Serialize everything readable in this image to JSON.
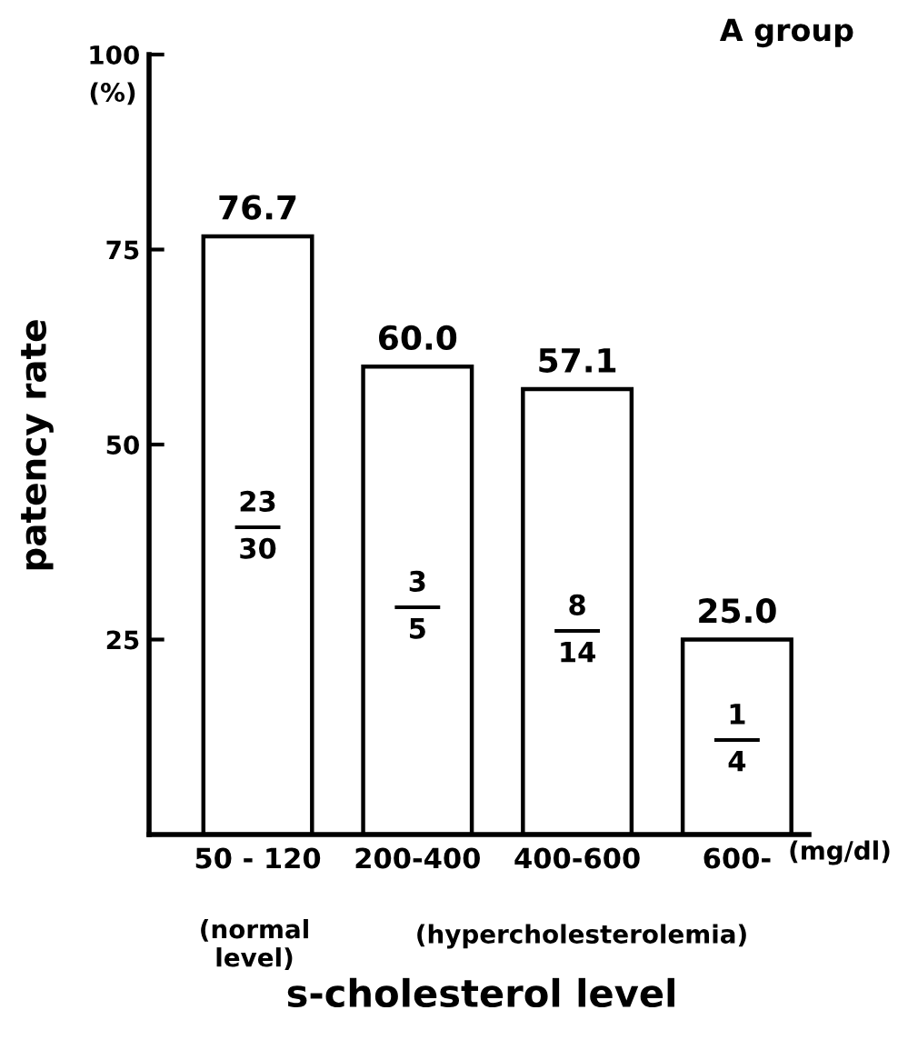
{
  "chart_data": {
    "type": "bar",
    "title": "A group",
    "xlabel": "s-cholesterol level",
    "ylabel": "patency rate",
    "categories": [
      "50 - 120",
      "200-400",
      "400-600",
      "600-"
    ],
    "values": [
      76.7,
      60.0,
      57.1,
      25.0
    ],
    "value_labels": [
      "76.7",
      "60.0",
      "57.1",
      "25.0"
    ],
    "color": "#ffffff",
    "ylim": [
      0,
      100
    ],
    "yticks": [
      25,
      50,
      75,
      100
    ],
    "grid": false,
    "legend": false,
    "annotations": [
      "(%)",
      "(mg/dl)",
      "(normal\nlevel)",
      "(hypercholesterolemia)",
      "23",
      "30",
      "3",
      "5",
      "8",
      "14",
      "1",
      "4"
    ]
  }
}
